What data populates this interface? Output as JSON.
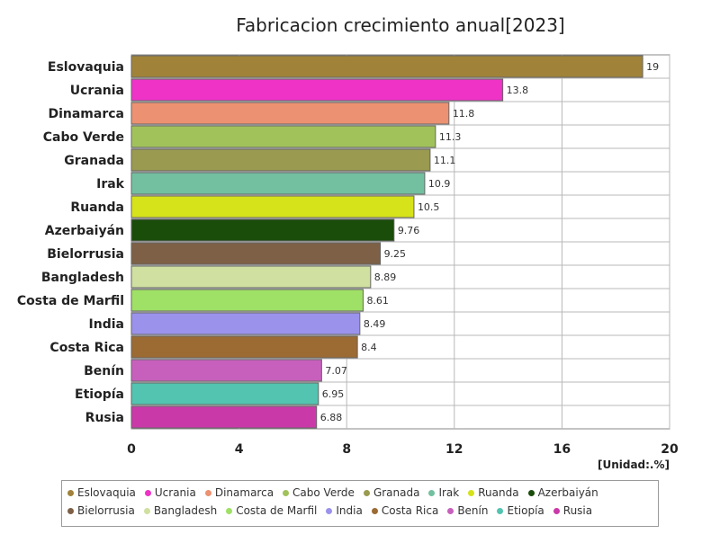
{
  "chart_data": {
    "type": "bar",
    "orientation": "horizontal",
    "title": "Fabricacion crecimiento anual[2023]",
    "unit_label": "[Unidad:.%]",
    "categories": [
      "Eslovaquia",
      "Ucrania",
      "Dinamarca",
      "Cabo Verde",
      "Granada",
      "Irak",
      "Ruanda",
      "Azerbaiyán",
      "Bielorrusia",
      "Bangladesh",
      "Costa de Marfil",
      "India",
      "Costa Rica",
      "Benín",
      "Etiopía",
      "Rusia"
    ],
    "values": [
      19,
      13.8,
      11.8,
      11.3,
      11.1,
      10.9,
      10.5,
      9.76,
      9.25,
      8.89,
      8.61,
      8.49,
      8.4,
      7.07,
      6.95,
      6.88
    ],
    "value_labels": [
      "19",
      "13.8",
      "11.8",
      "11.3",
      "11.1",
      "10.9",
      "10.5",
      "9.76",
      "9.25",
      "8.89",
      "8.61",
      "8.49",
      "8.4",
      "7.07",
      "6.95",
      "6.88"
    ],
    "colors": [
      "#a08339",
      "#ee33c6",
      "#ec9171",
      "#a1c25a",
      "#9a9a50",
      "#72c0a0",
      "#d6e21a",
      "#1a4c0a",
      "#7d6046",
      "#cfe0a0",
      "#9fe066",
      "#9b92ec",
      "#9c6a33",
      "#c760bc",
      "#52c4b0",
      "#c93aa8"
    ],
    "xlim": [
      0,
      20
    ],
    "xticks": [
      0,
      4,
      8,
      12,
      16,
      20
    ],
    "xtick_labels": [
      "0",
      "4",
      "8",
      "12",
      "16",
      "20"
    ],
    "grid": true,
    "legend_position": "bottom"
  }
}
